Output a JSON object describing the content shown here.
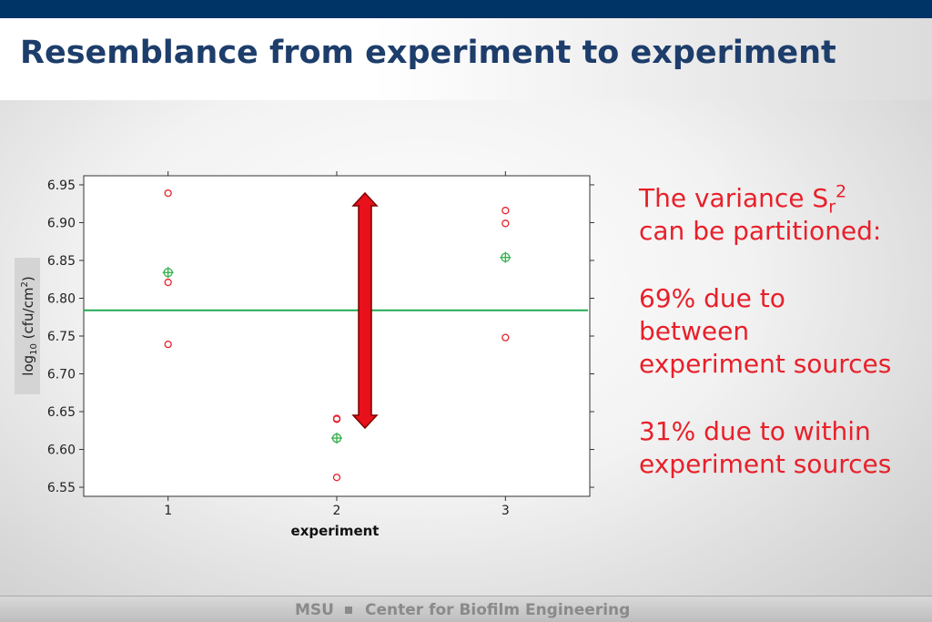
{
  "title": "Resemblance from experiment to experiment",
  "chart_data": {
    "type": "scatter",
    "xlabel": "experiment",
    "ylabel": {
      "text": "log",
      "sub": "10",
      "text2": " (cfu/cm",
      "sup": "2",
      "text3": ")"
    },
    "xlim": [
      0.5,
      3.5
    ],
    "xticks": [
      1,
      2,
      3
    ],
    "ylim": [
      6.538,
      6.962
    ],
    "yticks": [
      6.55,
      {
        "value": 6.6,
        "label": "6.60"
      },
      6.65,
      {
        "value": 6.7,
        "label": "6.70"
      },
      6.75,
      {
        "value": 6.8,
        "label": "6.80"
      },
      6.85,
      {
        "value": 6.9,
        "label": "6.90"
      },
      6.95
    ],
    "series": [
      {
        "marker": "circle",
        "color": "#e8202a",
        "x": [
          1,
          1,
          1,
          2,
          2,
          2,
          3,
          3,
          3
        ],
        "values": [
          6.939,
          6.821,
          6.739,
          6.641,
          6.64,
          6.563,
          6.916,
          6.899,
          6.748
        ]
      },
      {
        "marker": "crossed-circle",
        "color": "#33b04a",
        "x": [
          1,
          2,
          3
        ],
        "values": [
          6.834,
          6.615,
          6.854
        ]
      }
    ],
    "hlines": [
      {
        "value": 6.784,
        "color": "#22aa55"
      }
    ]
  },
  "notes": [
    {
      "pre": "The variance S",
      "sub": "r",
      "sup": "2",
      "post": "can be partitioned:"
    },
    {
      "lines": [
        "69% due to",
        "between",
        "experiment sources"
      ]
    },
    {
      "lines": [
        "31% due to within",
        "experiment sources"
      ]
    }
  ],
  "footer": {
    "left": "MSU",
    "right": "Center for Biofilm Engineering"
  }
}
